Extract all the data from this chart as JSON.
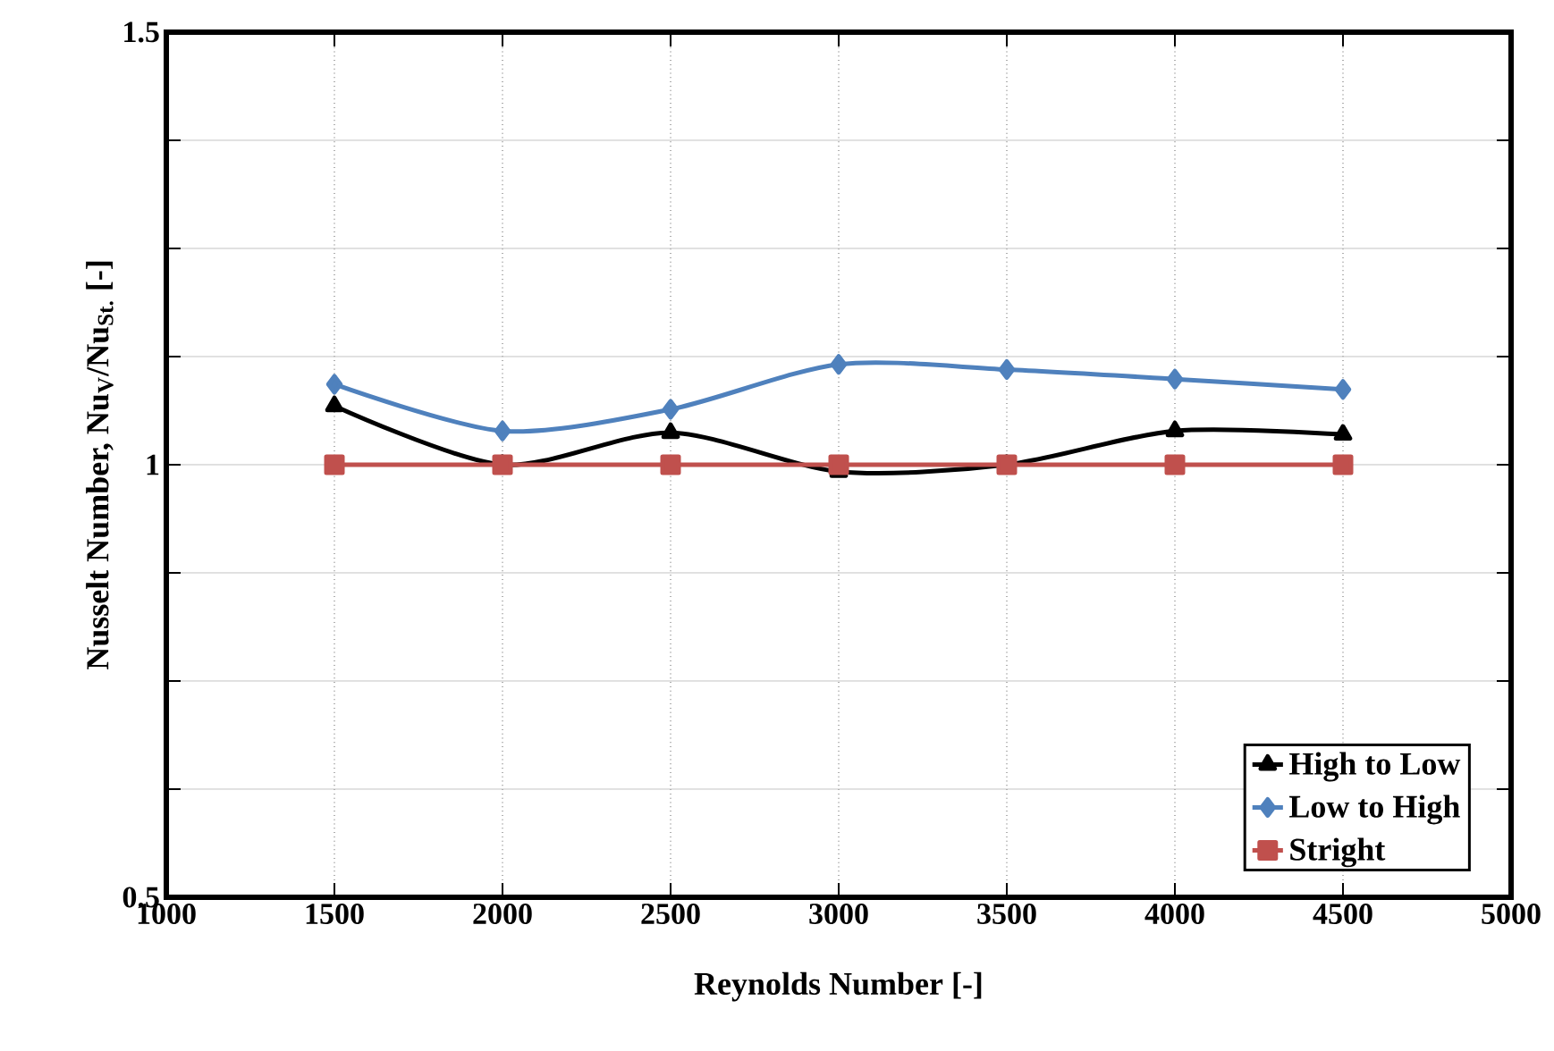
{
  "chart_data": {
    "type": "line",
    "xlabel": "Reynolds Number [-]",
    "ylabel": "Nusselt Number, Nu$_{V}$/Nu$_{St.}$ [-]",
    "x": [
      1500,
      2000,
      2500,
      3000,
      3500,
      4000,
      4500
    ],
    "series": [
      {
        "name": "High to Low",
        "color": "#000000",
        "marker": "triangle",
        "values": [
          1.068,
          1.0,
          1.037,
          0.992,
          1.0,
          1.039,
          1.035
        ]
      },
      {
        "name": "Low to High",
        "color": "#4f81bd",
        "marker": "diamond",
        "values": [
          1.093,
          1.039,
          1.064,
          1.116,
          1.11,
          1.099,
          1.087
        ]
      },
      {
        "name": "Stright",
        "color": "#c0504d",
        "marker": "square",
        "values": [
          1,
          1,
          1,
          1,
          1,
          1,
          1
        ]
      }
    ],
    "xlim": [
      1000,
      5000
    ],
    "xticks": [
      1000,
      1500,
      2000,
      2500,
      3000,
      3500,
      4000,
      4500,
      5000
    ],
    "ylim": [
      0.5,
      1.5
    ],
    "yticks": [
      0.5,
      {
        "value": 0.625,
        "label": null
      },
      {
        "value": 0.75,
        "label": null
      },
      {
        "value": 0.875,
        "label": null
      },
      1,
      {
        "value": 1.125,
        "label": null
      },
      {
        "value": 1.25,
        "label": null
      },
      {
        "value": 1.375,
        "label": null
      },
      1.5
    ],
    "grid": true,
    "legend": "bottom right",
    "line_style": "solid"
  }
}
